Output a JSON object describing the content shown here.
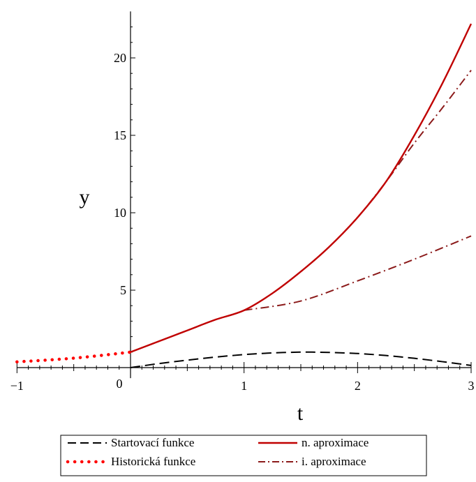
{
  "chart_data": {
    "type": "line",
    "xlabel": "t",
    "ylabel": "y",
    "xlim": [
      -1,
      3
    ],
    "ylim": [
      -0.5,
      23
    ],
    "x_ticks": [
      -1,
      1,
      2,
      3
    ],
    "y_ticks": [
      5,
      10,
      15,
      20
    ],
    "origin_label": "0",
    "grid": false,
    "legend_position": "bottom",
    "colors": {
      "startovaci": "#000000",
      "historicka": "#ff0000",
      "n_aproximace": "#c00000",
      "i_aproximace": "#8b1a1a"
    },
    "series": [
      {
        "name": "Startovací funkce",
        "style": "dashed",
        "color": "#000000",
        "x": [
          0,
          0.25,
          0.5,
          0.75,
          1.0,
          1.25,
          1.5,
          1.6,
          1.75,
          2.0,
          2.25,
          2.5,
          2.75,
          3.0
        ],
        "y": [
          0,
          0.26,
          0.48,
          0.68,
          0.84,
          0.95,
          1.0,
          1.0,
          0.98,
          0.91,
          0.78,
          0.6,
          0.38,
          0.14
        ]
      },
      {
        "name": "Historická funkce",
        "style": "dotted",
        "color": "#ff0000",
        "x": [
          -1,
          -0.5,
          0
        ],
        "y": [
          0.37,
          0.61,
          1.0
        ]
      },
      {
        "name": "n. aproximace",
        "style": "solid",
        "color": "#c00000",
        "x": [
          0,
          0.25,
          0.5,
          0.75,
          1.0,
          1.25,
          1.5,
          1.75,
          2.0,
          2.25,
          2.5,
          2.75,
          3.0
        ],
        "y": [
          1.0,
          1.7,
          2.4,
          3.1,
          3.7,
          4.8,
          6.2,
          7.8,
          9.7,
          12.0,
          15.0,
          18.4,
          22.2
        ]
      },
      {
        "name": "i. aproximace",
        "style": "dashdot",
        "color": "#8b1a1a",
        "x": [
          0,
          0.25,
          0.5,
          0.75,
          1.0,
          1.25,
          1.5,
          1.75,
          2.0,
          2.25,
          2.5,
          2.75,
          3.0
        ],
        "y": [
          1.0,
          1.7,
          2.4,
          3.1,
          3.7,
          4.8,
          6.2,
          7.8,
          9.7,
          12.0,
          14.5,
          16.8,
          19.2
        ],
        "extra_segments": [
          {
            "x": [
              1.0,
              1.5,
              2.0,
              2.5,
              3.0
            ],
            "y": [
              3.7,
              4.3,
              5.6,
              7.0,
              8.5
            ]
          }
        ]
      }
    ]
  },
  "legend": {
    "items": [
      {
        "label": "Startovací funkce",
        "style": "dashed",
        "color": "#000000"
      },
      {
        "label": "n. aproximace",
        "style": "solid",
        "color": "#c00000"
      },
      {
        "label": "Historická funkce",
        "style": "dotted",
        "color": "#ff0000"
      },
      {
        "label": "i. aproximace",
        "style": "dashdot",
        "color": "#8b1a1a"
      }
    ]
  }
}
